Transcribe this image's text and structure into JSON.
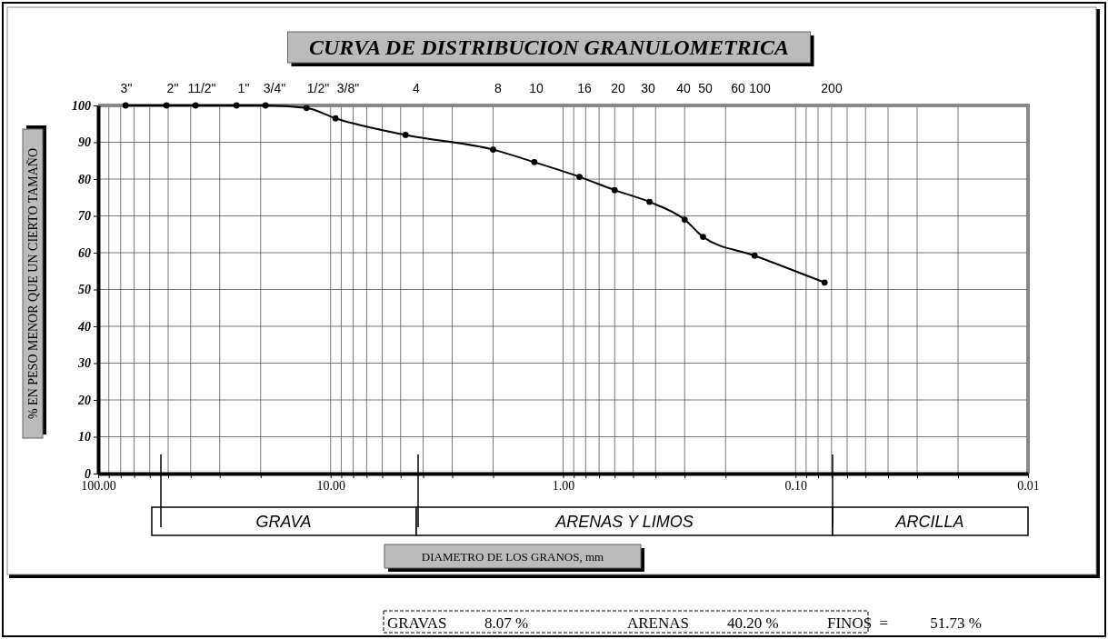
{
  "chart_data": {
    "type": "line",
    "title": "CURVA DE DISTRIBUCION GRANULOMETRICA",
    "xlabel": "DIAMETRO DE LOS GRANOS, mm",
    "ylabel": "% EN PESO MENOR QUE UN CIERTO TAMAÑO",
    "log": "x",
    "grid": true,
    "marker": "circle",
    "line_style": "solid",
    "x": [
      76.2,
      50.8,
      38.1,
      25.4,
      19.05,
      12.7,
      9.525,
      4.76,
      2.0,
      1.33,
      0.85,
      0.6,
      0.425,
      0.3,
      0.25,
      0.15,
      0.075
    ],
    "series": [
      {
        "color": "#000000",
        "values": [
          100,
          100,
          100,
          100,
          100,
          99.3,
          96.5,
          92,
          88,
          84.6,
          80.6,
          77,
          73.8,
          69,
          64.3,
          59.2,
          51.9
        ]
      }
    ],
    "xlim": [
      100,
      0.01
    ],
    "xticks": [
      {
        "value": 100,
        "label": "100.00"
      },
      {
        "value": 90,
        "label": null
      },
      {
        "value": 80,
        "label": null
      },
      {
        "value": 70,
        "label": null
      },
      {
        "value": 60,
        "label": null
      },
      {
        "value": 50,
        "label": null
      },
      {
        "value": 40,
        "label": null
      },
      {
        "value": 30,
        "label": null
      },
      {
        "value": 20,
        "label": null
      },
      {
        "value": 10,
        "label": "10.00"
      },
      {
        "value": 9,
        "label": null
      },
      {
        "value": 8,
        "label": null
      },
      {
        "value": 7,
        "label": null
      },
      {
        "value": 6,
        "label": null
      },
      {
        "value": 5,
        "label": null
      },
      {
        "value": 4,
        "label": null
      },
      {
        "value": 3,
        "label": null
      },
      {
        "value": 2,
        "label": null
      },
      {
        "value": 1,
        "label": "1.00"
      },
      {
        "value": 0.9,
        "label": null
      },
      {
        "value": 0.8,
        "label": null
      },
      {
        "value": 0.7,
        "label": null
      },
      {
        "value": 0.6,
        "label": null
      },
      {
        "value": 0.5,
        "label": null
      },
      {
        "value": 0.4,
        "label": null
      },
      {
        "value": 0.3,
        "label": null
      },
      {
        "value": 0.2,
        "label": null
      },
      {
        "value": 0.1,
        "label": "0.10"
      },
      {
        "value": 0.09,
        "label": null
      },
      {
        "value": 0.08,
        "label": null
      },
      {
        "value": 0.07,
        "label": null
      },
      {
        "value": 0.06,
        "label": null
      },
      {
        "value": 0.05,
        "label": null
      },
      {
        "value": 0.04,
        "label": null
      },
      {
        "value": 0.03,
        "label": null
      },
      {
        "value": 0.02,
        "label": null
      },
      {
        "value": 0.01,
        "label": "0.01"
      }
    ],
    "ylim": [
      0,
      100
    ],
    "yticks": [
      0,
      10,
      20,
      30,
      40,
      50,
      60,
      70,
      80,
      90,
      100
    ],
    "annotations": [
      "3\"",
      "2\"",
      "11/2\"",
      "1\"",
      "3/4\"",
      "1/2\"",
      "3/8\"",
      "4",
      "8",
      "10",
      "16",
      "20",
      "30",
      "40",
      "50",
      "60",
      "100",
      "200",
      "GRAVA",
      "ARENAS Y LIMOS",
      "ARCILLA",
      "GRAVAS",
      "8.07 %",
      "ARENAS",
      "40.20 %",
      "FINOS  =",
      "51.73 %"
    ]
  }
}
